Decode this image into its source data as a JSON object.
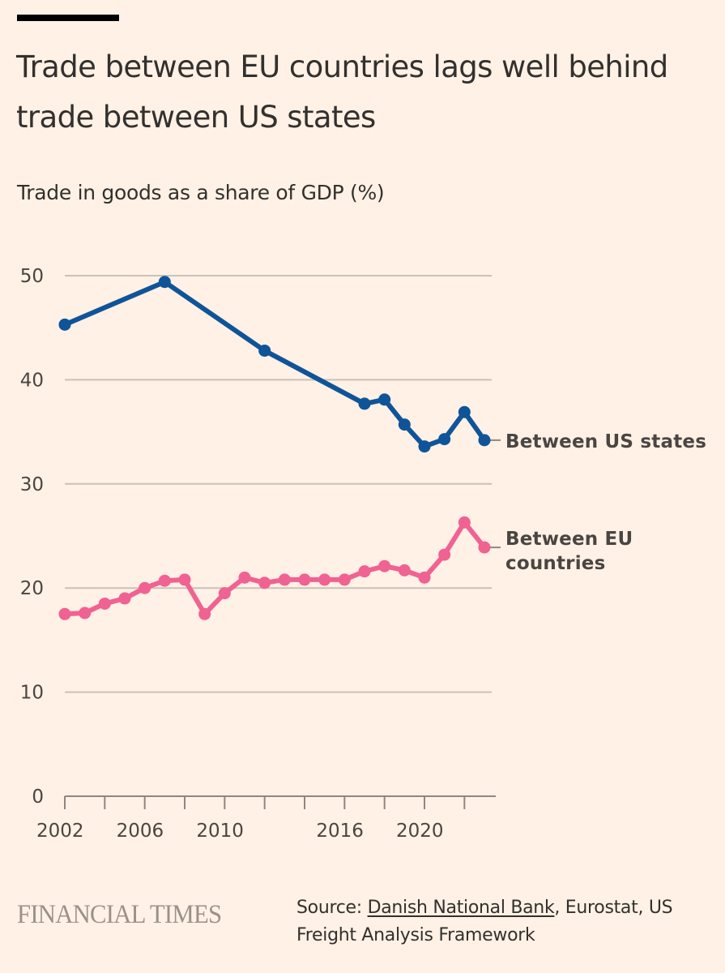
{
  "header": {
    "title": "Trade between EU countries lags well behind trade between US states",
    "subtitle": "Trade in goods as a share of GDP (%)"
  },
  "footer": {
    "logo": "FINANCIAL TIMES",
    "source_prefix": "Source: ",
    "source_link": "Danish National Bank",
    "source_rest": ", Eurostat, US Freight Analysis Framework"
  },
  "colors": {
    "background": "#fff1e5",
    "us_series": "#0f5499",
    "eu_series": "#f06292",
    "grid": "#ccc1b7",
    "axis": "#8f8680"
  },
  "chart_data": {
    "type": "line",
    "title": "Trade between EU countries lags well behind trade between US states",
    "subtitle": "Trade in goods as a share of GDP (%)",
    "xlabel": "",
    "ylabel": "",
    "xlim": [
      2002,
      2023
    ],
    "ylim": [
      0,
      50
    ],
    "yticks": [
      0,
      10,
      20,
      30,
      40,
      50
    ],
    "xtick_labels": [
      "2002",
      "2006",
      "2010",
      "2016",
      "2020"
    ],
    "xtick_label_years": [
      2002,
      2006,
      2010,
      2016,
      2020
    ],
    "xtick_marks": [
      2002,
      2004,
      2006,
      2008,
      2010,
      2012,
      2014,
      2016,
      2018,
      2020,
      2022
    ],
    "grid": true,
    "legend": "direct labels at right end of lines",
    "series": [
      {
        "name": "Between US states",
        "label_lines": [
          "Between US states"
        ],
        "color": "#0f5499",
        "x": [
          2002,
          2007,
          2012,
          2017,
          2018,
          2019,
          2020,
          2021,
          2022,
          2023
        ],
        "values": [
          45.3,
          49.4,
          42.8,
          37.7,
          38.1,
          35.7,
          33.6,
          34.3,
          36.9,
          34.2
        ]
      },
      {
        "name": "Between EU countries",
        "label_lines": [
          "Between EU",
          "countries"
        ],
        "color": "#f06292",
        "x": [
          2002,
          2003,
          2004,
          2005,
          2006,
          2007,
          2008,
          2009,
          2010,
          2011,
          2012,
          2013,
          2014,
          2015,
          2016,
          2017,
          2018,
          2019,
          2020,
          2021,
          2022,
          2023
        ],
        "values": [
          17.5,
          17.6,
          18.5,
          19.0,
          20.0,
          20.7,
          20.8,
          17.5,
          19.5,
          21.0,
          20.5,
          20.8,
          20.8,
          20.8,
          20.8,
          21.6,
          22.1,
          21.7,
          21.0,
          23.2,
          26.3,
          23.9
        ]
      }
    ]
  }
}
